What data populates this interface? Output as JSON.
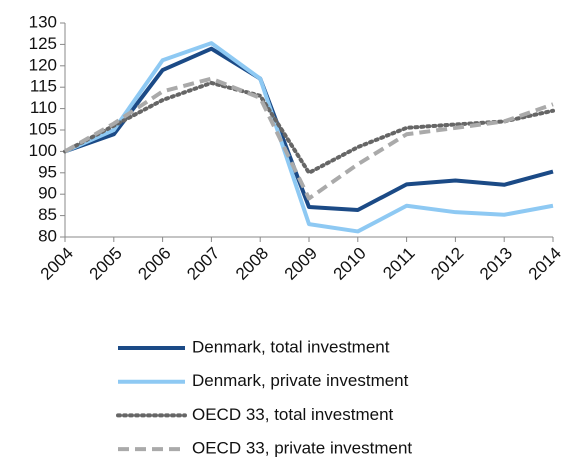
{
  "chart_data": {
    "type": "line",
    "categories": [
      "2004",
      "2005",
      "2006",
      "2007",
      "2008",
      "2009",
      "2010",
      "2011",
      "2012",
      "2013",
      "2014"
    ],
    "series": [
      {
        "name": "Denmark, total investment",
        "color": "#1b4a86",
        "style": "solid",
        "values": [
          100,
          104,
          119,
          124,
          117,
          87,
          86.3,
          92.3,
          93.2,
          92.2,
          95.3
        ]
      },
      {
        "name": "Denmark, private investment",
        "color": "#8ec9f3",
        "style": "solid",
        "values": [
          100,
          105,
          121.3,
          125.3,
          117,
          83,
          81.3,
          87.3,
          85.8,
          85.2,
          87.3
        ]
      },
      {
        "name": "OECD 33, total investment",
        "color": "#666666",
        "style": "dotted",
        "values": [
          100,
          106,
          112,
          116,
          113,
          95,
          101,
          105.5,
          106.3,
          107,
          109.5
        ]
      },
      {
        "name": "OECD 33, private investment",
        "color": "#aaaaaa",
        "style": "dashed",
        "values": [
          100,
          106.5,
          114,
          117,
          112.5,
          89,
          97,
          104,
          105.5,
          107,
          111
        ]
      }
    ],
    "ylim": [
      80,
      130
    ],
    "yticks": [
      80,
      85,
      90,
      95,
      100,
      105,
      110,
      115,
      120,
      125,
      130
    ],
    "grid": false
  }
}
